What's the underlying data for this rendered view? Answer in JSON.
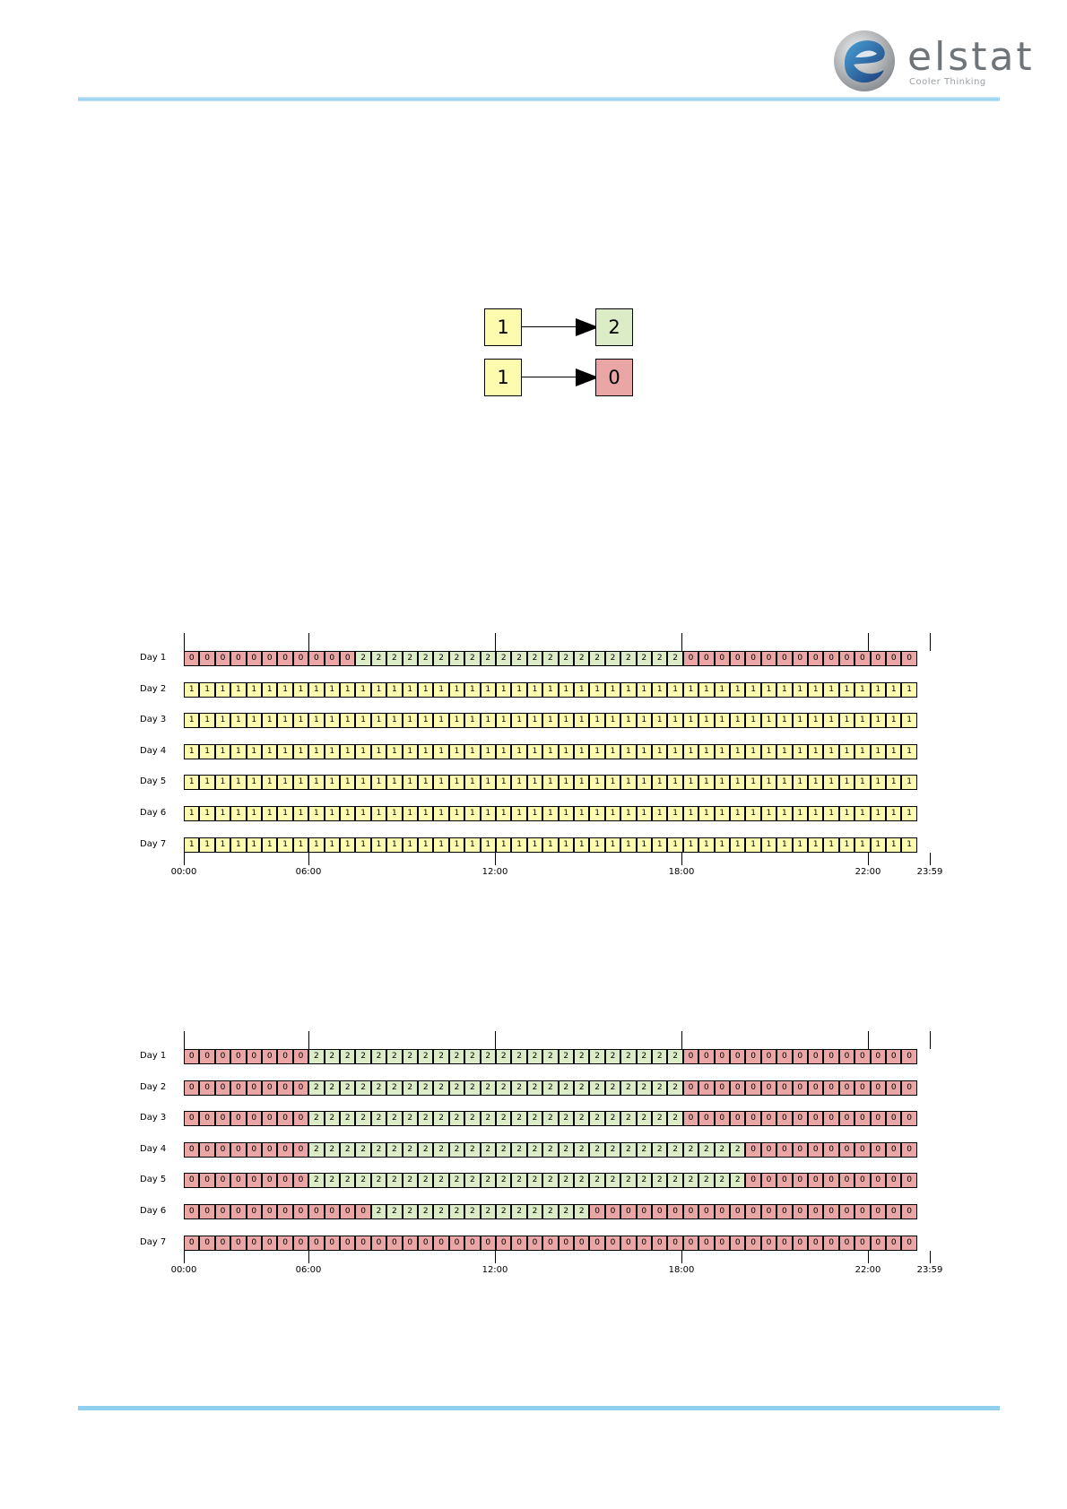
{
  "header": {
    "logo_text": "elstat",
    "logo_tagline": "Cooler Thinking",
    "rule_color": "#8fd0f0"
  },
  "colors": {
    "state_0": "#eaa5a5",
    "state_1": "#fdfcae",
    "state_2": "#dcecc6"
  },
  "transitions": [
    {
      "from": "1",
      "to": "2"
    },
    {
      "from": "1",
      "to": "0"
    }
  ],
  "schedules": [
    {
      "time_labels": [
        "00:00",
        "06:00",
        "12:00",
        "18:00",
        "22:00",
        "23:59"
      ],
      "days": [
        {
          "label": "Day 1",
          "states": "00000000000222222222222222222222000000000000000"
        },
        {
          "label": "Day 2",
          "states": "11111111111111111111111111111111111111111111111"
        },
        {
          "label": "Day 3",
          "states": "11111111111111111111111111111111111111111111111"
        },
        {
          "label": "Day 4",
          "states": "11111111111111111111111111111111111111111111111"
        },
        {
          "label": "Day 5",
          "states": "11111111111111111111111111111111111111111111111"
        },
        {
          "label": "Day 6",
          "states": "11111111111111111111111111111111111111111111111"
        },
        {
          "label": "Day 7",
          "states": "11111111111111111111111111111111111111111111111"
        }
      ]
    },
    {
      "time_labels": [
        "00:00",
        "06:00",
        "12:00",
        "18:00",
        "22:00",
        "23:59"
      ],
      "days": [
        {
          "label": "Day 1",
          "states": "00000000222222222222222222222222000000000000000"
        },
        {
          "label": "Day 2",
          "states": "00000000222222222222222222222222000000000000000"
        },
        {
          "label": "Day 3",
          "states": "00000000222222222222222222222222000000000000000"
        },
        {
          "label": "Day 4",
          "states": "00000000222222222222222222222222222200000000000"
        },
        {
          "label": "Day 5",
          "states": "00000000222222222222222222222222222200000000000"
        },
        {
          "label": "Day 6",
          "states": "00000000000022222222222222000000000000000000000"
        },
        {
          "label": "Day 7",
          "states": "00000000000000000000000000000000000000000000000"
        }
      ]
    }
  ]
}
